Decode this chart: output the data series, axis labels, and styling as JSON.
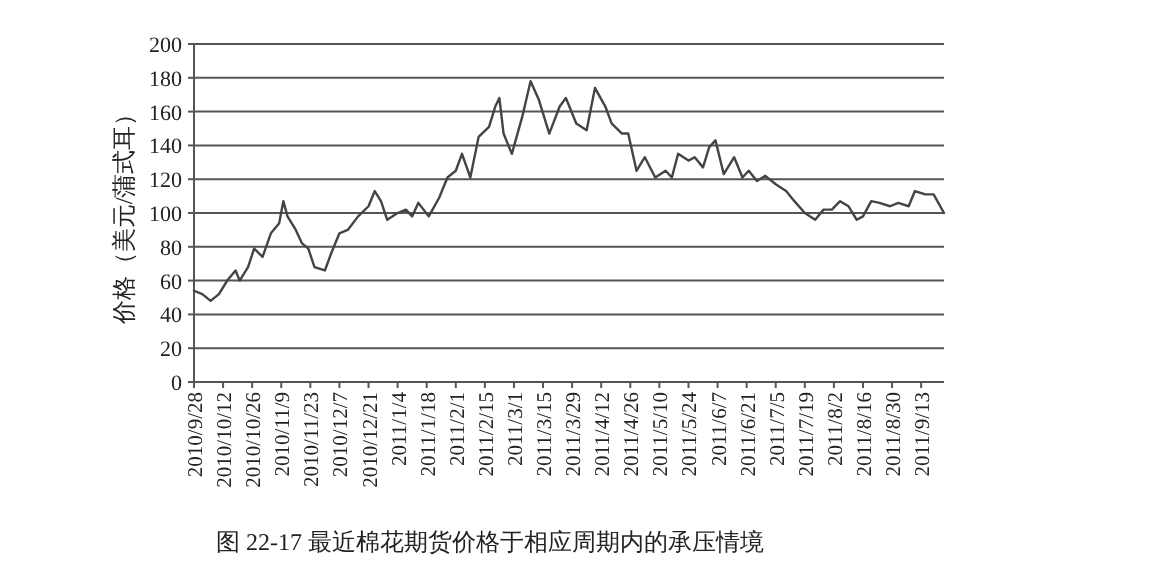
{
  "chart_data": {
    "type": "line",
    "ylabel": "价格（美元/蒲式耳）",
    "annotations": [
      "图 22-17    最近棉花期货价格于相应周期内的承压情境"
    ],
    "xlim": [
      "2010-09-28",
      "2011-09-24"
    ],
    "ylim": [
      0,
      200
    ],
    "yticks": [
      0,
      20,
      40,
      60,
      80,
      100,
      120,
      140,
      160,
      180,
      200
    ],
    "xticks": [
      {
        "value": "2010-09-28",
        "label": "2010/9/28"
      },
      {
        "value": "2010-10-12",
        "label": "2010/10/12"
      },
      {
        "value": "2010-10-26",
        "label": "2010/10/26"
      },
      {
        "value": "2010-11-09",
        "label": "2010/11/9"
      },
      {
        "value": "2010-11-23",
        "label": "2010/11/23"
      },
      {
        "value": "2010-12-07",
        "label": "2010/12/7"
      },
      {
        "value": "2010-12-21",
        "label": "2010/12/21"
      },
      {
        "value": "2011-01-04",
        "label": "2011/1/4"
      },
      {
        "value": "2011-01-18",
        "label": "2011/1/18"
      },
      {
        "value": "2011-02-01",
        "label": "2011/2/1"
      },
      {
        "value": "2011-02-15",
        "label": "2011/2/15"
      },
      {
        "value": "2011-03-01",
        "label": "2011/3/1"
      },
      {
        "value": "2011-03-15",
        "label": "2011/3/15"
      },
      {
        "value": "2011-03-29",
        "label": "2011/3/29"
      },
      {
        "value": "2011-04-12",
        "label": "2011/4/12"
      },
      {
        "value": "2011-04-26",
        "label": "2011/4/26"
      },
      {
        "value": "2011-05-10",
        "label": "2011/5/10"
      },
      {
        "value": "2011-05-24",
        "label": "2011/5/24"
      },
      {
        "value": "2011-06-07",
        "label": "2011/6/7"
      },
      {
        "value": "2011-06-21",
        "label": "2011/6/21"
      },
      {
        "value": "2011-07-05",
        "label": "2011/7/5"
      },
      {
        "value": "2011-07-19",
        "label": "2011/7/19"
      },
      {
        "value": "2011-08-02",
        "label": "2011/8/2"
      },
      {
        "value": "2011-08-16",
        "label": "2011/8/16"
      },
      {
        "value": "2011-08-30",
        "label": "2011/8/30"
      },
      {
        "value": "2011-09-13",
        "label": "2011/9/13"
      }
    ],
    "grid": "y",
    "x": [
      "2010-09-28",
      "2010-10-02",
      "2010-10-06",
      "2010-10-10",
      "2010-10-14",
      "2010-10-18",
      "2010-10-20",
      "2010-10-24",
      "2010-10-27",
      "2010-10-31",
      "2010-11-04",
      "2010-11-08",
      "2010-11-10",
      "2010-11-12",
      "2010-11-16",
      "2010-11-19",
      "2010-11-22",
      "2010-11-25",
      "2010-11-30",
      "2010-12-03",
      "2010-12-07",
      "2010-12-11",
      "2010-12-16",
      "2010-12-21",
      "2010-12-24",
      "2010-12-27",
      "2010-12-30",
      "2011-01-04",
      "2011-01-08",
      "2011-01-11",
      "2011-01-14",
      "2011-01-19",
      "2011-01-24",
      "2011-01-28",
      "2011-02-01",
      "2011-02-04",
      "2011-02-08",
      "2011-02-12",
      "2011-02-17",
      "2011-02-20",
      "2011-02-22",
      "2011-02-24",
      "2011-02-28",
      "2011-03-05",
      "2011-03-09",
      "2011-03-13",
      "2011-03-18",
      "2011-03-23",
      "2011-03-26",
      "2011-03-31",
      "2011-04-05",
      "2011-04-09",
      "2011-04-14",
      "2011-04-17",
      "2011-04-22",
      "2011-04-25",
      "2011-04-29",
      "2011-05-03",
      "2011-05-08",
      "2011-05-13",
      "2011-05-16",
      "2011-05-19",
      "2011-05-24",
      "2011-05-27",
      "2011-05-31",
      "2011-06-03",
      "2011-06-06",
      "2011-06-10",
      "2011-06-15",
      "2011-06-19",
      "2011-06-22",
      "2011-06-26",
      "2011-06-30",
      "2011-07-05",
      "2011-07-10",
      "2011-07-14",
      "2011-07-19",
      "2011-07-24",
      "2011-07-28",
      "2011-08-01",
      "2011-08-05",
      "2011-08-09",
      "2011-08-13",
      "2011-08-16",
      "2011-08-20",
      "2011-08-24",
      "2011-08-29",
      "2011-09-02",
      "2011-09-07",
      "2011-09-10",
      "2011-09-15",
      "2011-09-19",
      "2011-09-24"
    ],
    "series": [
      {
        "color": "#444444",
        "values": [
          54,
          52,
          48,
          52,
          60,
          66,
          60,
          68,
          79,
          74,
          88,
          94,
          107,
          98,
          90,
          82,
          79,
          68,
          66,
          76,
          88,
          90,
          98,
          104,
          113,
          107,
          96,
          100,
          102,
          98,
          106,
          98,
          109,
          121,
          125,
          135,
          121,
          145,
          151,
          163,
          168,
          147,
          135,
          157,
          178,
          167,
          147,
          163,
          168,
          153,
          149,
          174,
          163,
          153,
          147,
          147,
          125,
          133,
          121,
          125,
          121,
          135,
          131,
          133,
          127,
          139,
          143,
          123,
          133,
          121,
          125,
          119,
          122,
          117,
          113,
          107,
          100,
          96,
          102,
          102,
          107,
          104,
          96,
          98,
          107,
          106,
          104,
          106,
          104,
          113,
          111,
          111,
          100
        ]
      }
    ]
  }
}
